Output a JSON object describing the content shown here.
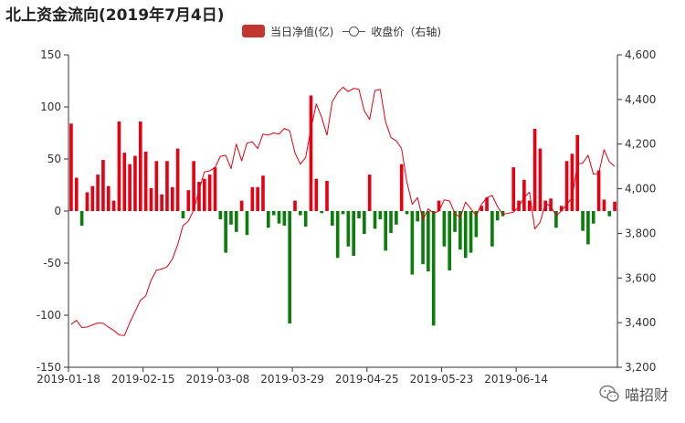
{
  "chart_data": {
    "type": "bar+line",
    "title": "北上资金流向(2019年7月4日)",
    "legend": {
      "bar_label": "当日净值(亿)",
      "line_label": "收盘价（右轴)",
      "position": "top-center"
    },
    "colors": {
      "positive": "#e60012",
      "negative": "#0a7d0a",
      "line": "#e60012",
      "legend_bar": "#c23531"
    },
    "left_axis": {
      "ylim": [
        -150,
        150
      ],
      "ticks": [
        "-150",
        "-100",
        "-50",
        "0",
        "50",
        "100",
        "150"
      ]
    },
    "right_axis": {
      "ylim": [
        3200,
        4600
      ],
      "ticks": [
        "3,200",
        "3,400",
        "3,600",
        "3,800",
        "4,000",
        "4,200",
        "4,400",
        "4,600"
      ]
    },
    "x_ticks": [
      "2019-01-18",
      "2019-02-15",
      "2019-03-08",
      "2019-03-29",
      "2019-04-25",
      "2019-05-23",
      "2019-06-14"
    ],
    "x_tick_index": [
      0,
      14,
      28,
      42,
      56,
      70,
      84
    ],
    "bar_values": [
      84,
      32,
      -14,
      18,
      24,
      35,
      49,
      24,
      10,
      86,
      56,
      45,
      53,
      86,
      57,
      22,
      48,
      16,
      48,
      23,
      60,
      -7,
      20,
      48,
      28,
      31,
      35,
      42,
      -8,
      -40,
      -13,
      -20,
      10,
      -23,
      23,
      23,
      34,
      -16,
      -4,
      -12,
      -14,
      -108,
      10,
      -4,
      -15,
      111,
      31,
      -2,
      29,
      -14,
      -45,
      -3,
      -34,
      -43,
      -7,
      -22,
      35,
      -17,
      -8,
      -38,
      -21,
      -13,
      45,
      -3,
      -61,
      -10,
      -51,
      -58,
      -110,
      10,
      -34,
      -57,
      -20,
      -37,
      -45,
      -40,
      -25,
      5,
      13,
      -34,
      -9,
      -5,
      0,
      42,
      10,
      30,
      10,
      79,
      60,
      10,
      12,
      -16,
      5,
      48,
      55,
      73,
      -19,
      -32,
      -12,
      39,
      11,
      -5,
      9
    ],
    "line_values": [
      3392,
      3410,
      3378,
      3380,
      3390,
      3398,
      3397,
      3380,
      3365,
      3345,
      3342,
      3400,
      3450,
      3500,
      3520,
      3590,
      3635,
      3640,
      3650,
      3685,
      3750,
      3835,
      3855,
      3905,
      3995,
      4075,
      4080,
      4095,
      4145,
      4150,
      4090,
      4200,
      4125,
      4205,
      4210,
      4180,
      4245,
      4240,
      4250,
      4245,
      4270,
      4260,
      4160,
      4110,
      4140,
      4270,
      4380,
      4320,
      4240,
      4390,
      4430,
      4455,
      4435,
      4450,
      4445,
      4350,
      4310,
      4440,
      4445,
      4300,
      4230,
      4215,
      4180,
      4030,
      3930,
      3960,
      3860,
      3910,
      3890,
      3900,
      3950,
      3945,
      3890,
      3870,
      3940,
      3910,
      3880,
      3930,
      3960,
      3970,
      3920,
      3885,
      3890,
      3895,
      3920,
      3960,
      3985,
      3820,
      3850,
      3935,
      3920,
      3880,
      3900,
      3930,
      3960,
      4110,
      4115,
      4150,
      4065,
      4070,
      4175,
      4120,
      4100
    ]
  },
  "watermark": {
    "text": "喵招财",
    "icon": "wechat-icon"
  }
}
